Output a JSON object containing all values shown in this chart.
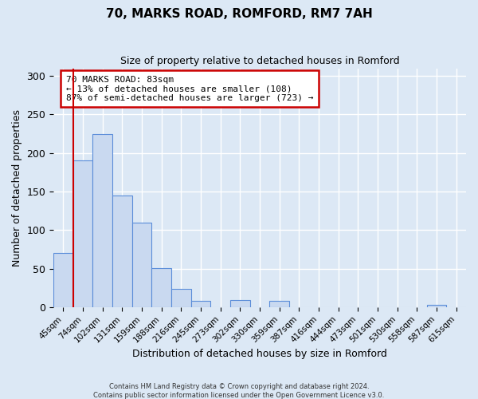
{
  "title": "70, MARKS ROAD, ROMFORD, RM7 7AH",
  "subtitle": "Size of property relative to detached houses in Romford",
  "xlabel": "Distribution of detached houses by size in Romford",
  "ylabel": "Number of detached properties",
  "bar_labels": [
    "45sqm",
    "74sqm",
    "102sqm",
    "131sqm",
    "159sqm",
    "188sqm",
    "216sqm",
    "245sqm",
    "273sqm",
    "302sqm",
    "330sqm",
    "359sqm",
    "387sqm",
    "416sqm",
    "444sqm",
    "473sqm",
    "501sqm",
    "530sqm",
    "558sqm",
    "587sqm",
    "615sqm"
  ],
  "bar_values": [
    70,
    190,
    225,
    145,
    110,
    51,
    24,
    8,
    0,
    9,
    0,
    8,
    0,
    0,
    0,
    0,
    0,
    0,
    0,
    3,
    0
  ],
  "bar_color": "#c9d9f0",
  "bar_edge_color": "#5b8dd9",
  "property_line_x": 0.5,
  "annotation_text": "70 MARKS ROAD: 83sqm\n← 13% of detached houses are smaller (108)\n87% of semi-detached houses are larger (723) →",
  "annotation_box_color": "#ffffff",
  "annotation_box_edge_color": "#cc0000",
  "ylim": [
    0,
    310
  ],
  "yticks": [
    0,
    50,
    100,
    150,
    200,
    250,
    300
  ],
  "footer_line1": "Contains HM Land Registry data © Crown copyright and database right 2024.",
  "footer_line2": "Contains public sector information licensed under the Open Government Licence v3.0.",
  "background_color": "#dce8f5",
  "grid_color": "#ffffff"
}
